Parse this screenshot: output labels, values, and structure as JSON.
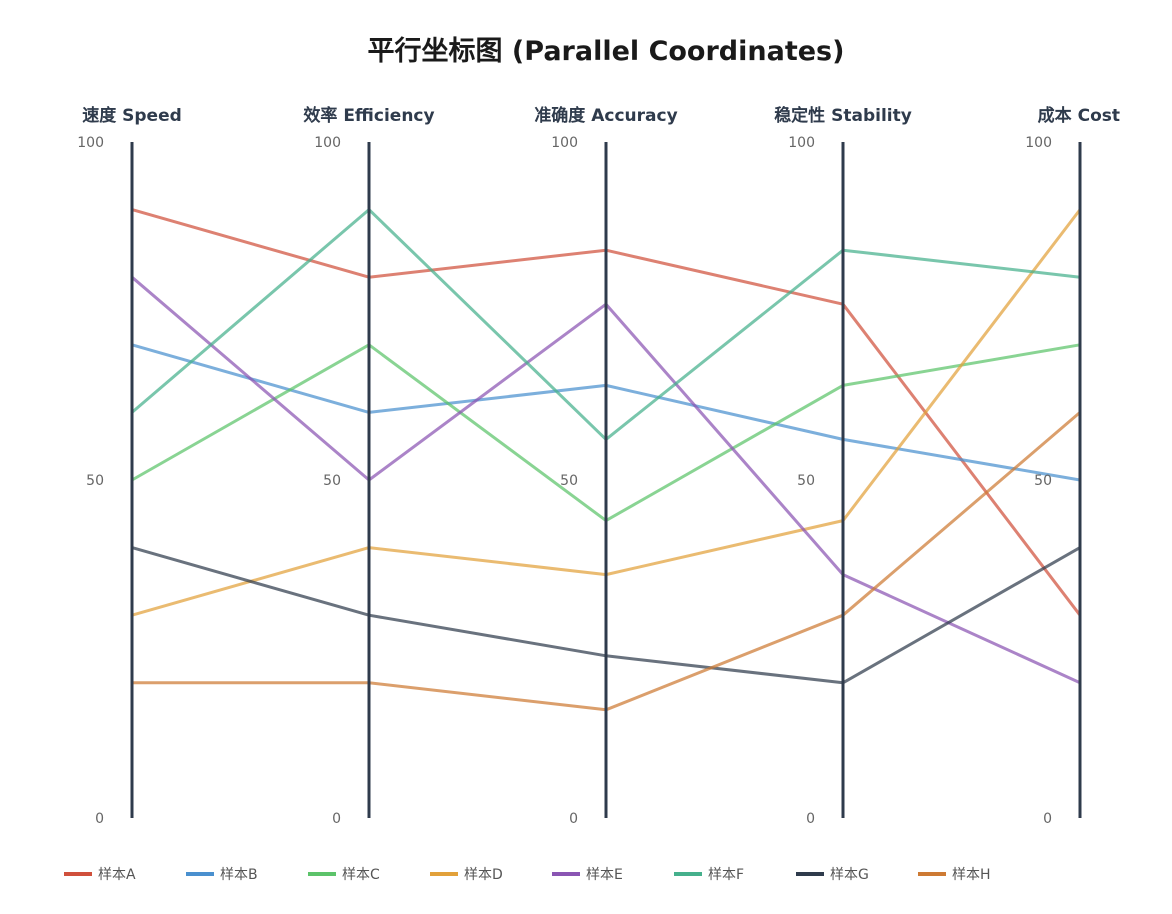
{
  "chart_data": {
    "type": "parallel_coordinates",
    "title": "平行坐标图 (Parallel Coordinates)",
    "axes": [
      {
        "name": "速度 Speed",
        "range": [
          0,
          100
        ],
        "ticks": [
          "0",
          "50",
          "100"
        ]
      },
      {
        "name": "效率 Efficiency",
        "range": [
          0,
          100
        ],
        "ticks": [
          "0",
          "50",
          "100"
        ]
      },
      {
        "name": "准确度 Accuracy",
        "range": [
          0,
          100
        ],
        "ticks": [
          "0",
          "50",
          "100"
        ]
      },
      {
        "name": "稳定性 Stability",
        "range": [
          0,
          100
        ],
        "ticks": [
          "0",
          "50",
          "100"
        ]
      },
      {
        "name": "成本 Cost",
        "range": [
          0,
          100
        ],
        "ticks": [
          "0",
          "50",
          "100"
        ]
      }
    ],
    "series": [
      {
        "name": "样本A",
        "color": "#d0503c",
        "values": [
          90,
          80,
          84,
          76,
          30
        ]
      },
      {
        "name": "样本B",
        "color": "#4a90cf",
        "values": [
          70,
          60,
          64,
          56,
          50
        ]
      },
      {
        "name": "样本C",
        "color": "#5cc36a",
        "values": [
          50,
          70,
          44,
          64,
          70
        ]
      },
      {
        "name": "样本D",
        "color": "#e2a13a",
        "values": [
          30,
          40,
          36,
          44,
          90
        ]
      },
      {
        "name": "样本E",
        "color": "#8a55b3",
        "values": [
          80,
          50,
          76,
          36,
          20
        ]
      },
      {
        "name": "样本F",
        "color": "#45b08c",
        "values": [
          60,
          90,
          56,
          84,
          80
        ]
      },
      {
        "name": "样本G",
        "color": "#2f3b4c",
        "values": [
          40,
          30,
          24,
          20,
          40
        ]
      },
      {
        "name": "样本H",
        "color": "#cd7a33",
        "values": [
          20,
          20,
          16,
          30,
          60
        ]
      }
    ],
    "legend": "bottom-left"
  }
}
